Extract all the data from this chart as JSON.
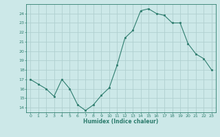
{
  "x": [
    0,
    1,
    2,
    3,
    4,
    5,
    6,
    7,
    8,
    9,
    10,
    11,
    12,
    13,
    14,
    15,
    16,
    17,
    18,
    19,
    20,
    21,
    22,
    23
  ],
  "y": [
    17,
    16.5,
    16,
    15.2,
    17,
    16,
    14.3,
    13.7,
    14.3,
    15.3,
    16.1,
    18.5,
    21.4,
    22.2,
    24.3,
    24.5,
    24.0,
    23.8,
    23.0,
    23.0,
    20.8,
    19.7,
    19.2,
    18.0
  ],
  "line_color": "#2e7d6e",
  "bg_color": "#cce8e8",
  "grid_color": "#b0d0d0",
  "xlabel": "Humidex (Indice chaleur)",
  "ylim": [
    13.5,
    25
  ],
  "xlim": [
    -0.5,
    23.5
  ],
  "yticks": [
    14,
    15,
    16,
    17,
    18,
    19,
    20,
    21,
    22,
    23,
    24
  ],
  "xticks": [
    0,
    1,
    2,
    3,
    4,
    5,
    6,
    7,
    8,
    9,
    10,
    11,
    12,
    13,
    14,
    15,
    16,
    17,
    18,
    19,
    20,
    21,
    22,
    23
  ],
  "tick_color": "#2e7d6e",
  "label_color": "#2e7d6e",
  "tick_fontsize": 4.5,
  "xlabel_fontsize": 5.5,
  "marker_size": 2.0,
  "line_width": 0.8
}
